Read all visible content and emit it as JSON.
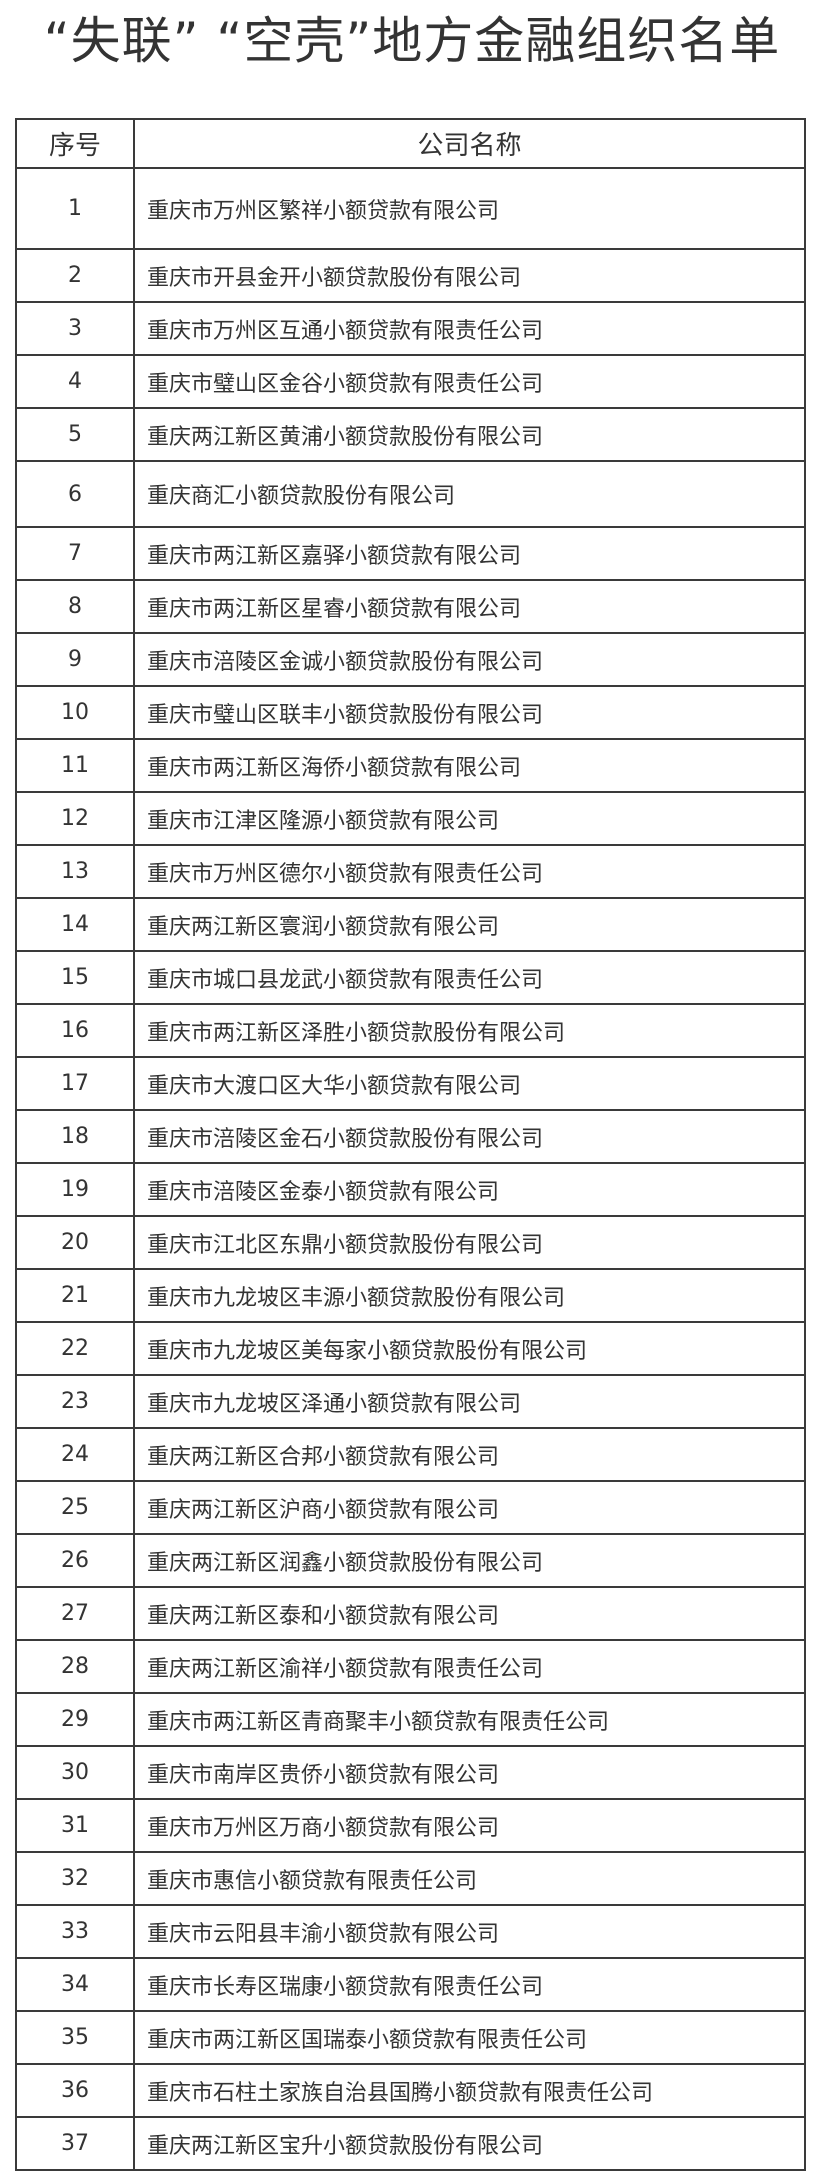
{
  "title": "“失联” “空壳”地方金融组织名单",
  "table": {
    "headers": [
      "序号",
      "公司名称"
    ],
    "rows": [
      [
        "1",
        "重庆市万州区繁祥小额贷款有限公司"
      ],
      [
        "2",
        "重庆市开县金开小额贷款股份有限公司"
      ],
      [
        "3",
        "重庆市万州区互通小额贷款有限责任公司"
      ],
      [
        "4",
        "重庆市璧山区金谷小额贷款有限责任公司"
      ],
      [
        "5",
        "重庆两江新区黄浦小额贷款股份有限公司"
      ],
      [
        "6",
        "重庆商汇小额贷款股份有限公司"
      ],
      [
        "7",
        "重庆市两江新区嘉驿小额贷款有限公司"
      ],
      [
        "8",
        "重庆市两江新区星睿小额贷款有限公司"
      ],
      [
        "9",
        "重庆市涪陵区金诚小额贷款股份有限公司"
      ],
      [
        "10",
        "重庆市璧山区联丰小额贷款股份有限公司"
      ],
      [
        "11",
        "重庆市两江新区海侨小额贷款有限公司"
      ],
      [
        "12",
        "重庆市江津区隆源小额贷款有限公司"
      ],
      [
        "13",
        "重庆市万州区德尔小额贷款有限责任公司"
      ],
      [
        "14",
        "重庆两江新区寰润小额贷款有限公司"
      ],
      [
        "15",
        "重庆市城口县龙武小额贷款有限责任公司"
      ],
      [
        "16",
        "重庆市两江新区泽胜小额贷款股份有限公司"
      ],
      [
        "17",
        "重庆市大渡口区大华小额贷款有限公司"
      ],
      [
        "18",
        "重庆市涪陵区金石小额贷款股份有限公司"
      ],
      [
        "19",
        "重庆市涪陵区金泰小额贷款有限公司"
      ],
      [
        "20",
        "重庆市江北区东鼎小额贷款股份有限公司"
      ],
      [
        "21",
        "重庆市九龙坡区丰源小额贷款股份有限公司"
      ],
      [
        "22",
        "重庆市九龙坡区美每家小额贷款股份有限公司"
      ],
      [
        "23",
        "重庆市九龙坡区泽通小额贷款有限公司"
      ],
      [
        "24",
        "重庆两江新区合邦小额贷款有限公司"
      ],
      [
        "25",
        "重庆两江新区沪商小额贷款有限公司"
      ],
      [
        "26",
        "重庆两江新区润鑫小额贷款股份有限公司"
      ],
      [
        "27",
        "重庆两江新区泰和小额贷款有限公司"
      ],
      [
        "28",
        "重庆两江新区渝祥小额贷款有限责任公司"
      ],
      [
        "29",
        "重庆市两江新区青商聚丰小额贷款有限责任公司"
      ],
      [
        "30",
        "重庆市南岸区贵侨小额贷款有限公司"
      ],
      [
        "31",
        "重庆市万州区万商小额贷款有限公司"
      ],
      [
        "32",
        "重庆市惠信小额贷款有限责任公司"
      ],
      [
        "33",
        "重庆市云阳县丰渝小额贷款有限公司"
      ],
      [
        "34",
        "重庆市长寿区瑞康小额贷款有限责任公司"
      ],
      [
        "35",
        "重庆市两江新区国瑞泰小额贷款有限责任公司"
      ],
      [
        "36",
        "重庆市石柱土家族自治县国腾小额贷款有限责任公司"
      ],
      [
        "37",
        "重庆两江新区宝升小额贷款股份有限公司"
      ]
    ]
  }
}
